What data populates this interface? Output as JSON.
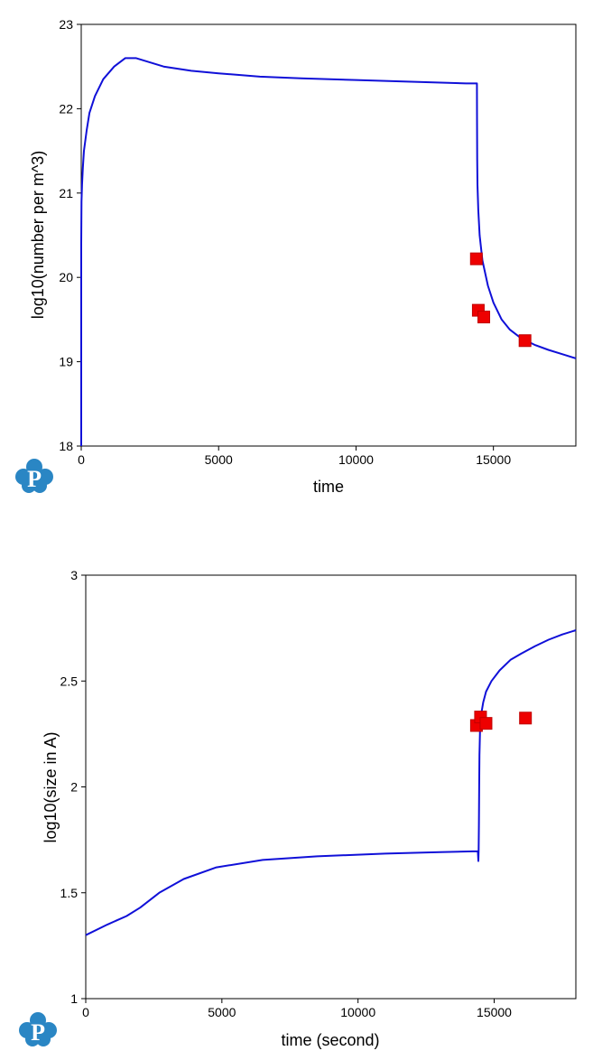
{
  "colors": {
    "line": "#1010d8",
    "marker": "#ee0000",
    "marker_edge": "#c00000",
    "logo": "#2a86c4",
    "axis": "#000000"
  },
  "logo": {
    "letter": "P",
    "icon": "pandat-logo-icon"
  },
  "chart_data": [
    {
      "type": "line",
      "title": "",
      "xlabel": "time",
      "ylabel": "log10(number per m^3)",
      "xlim": [
        0,
        18000
      ],
      "ylim": [
        18,
        23
      ],
      "xticks": [
        0,
        5000,
        10000,
        15000
      ],
      "yticks": [
        18,
        19,
        20,
        21,
        22,
        23
      ],
      "xtick_labels": [
        "0",
        "5000",
        "10000",
        "15000"
      ],
      "ytick_labels": [
        "18",
        "19",
        "20",
        "21",
        "22",
        "23"
      ],
      "grid": false,
      "series": [
        {
          "kind": "line",
          "x": [
            0,
            0,
            10,
            30,
            60,
            100,
            200,
            300,
            500,
            800,
            1200,
            1600,
            2000,
            3000,
            4000,
            5000,
            6500,
            8000,
            10000,
            12000,
            14000,
            14400,
            14402,
            14410,
            14420,
            14450,
            14500,
            14600,
            14800,
            15000,
            15300,
            15600,
            16000,
            16500,
            17000,
            17500,
            18000
          ],
          "y": [
            18.0,
            20.4,
            20.9,
            21.1,
            21.3,
            21.5,
            21.75,
            21.95,
            22.15,
            22.35,
            22.5,
            22.6,
            22.6,
            22.5,
            22.45,
            22.42,
            22.38,
            22.36,
            22.34,
            22.32,
            22.3,
            22.3,
            21.9,
            21.4,
            21.1,
            20.8,
            20.5,
            20.2,
            19.9,
            19.7,
            19.5,
            19.38,
            19.28,
            19.2,
            19.14,
            19.09,
            19.04
          ]
        },
        {
          "kind": "markers",
          "x": [
            14380,
            14450,
            14650,
            16150
          ],
          "y": [
            20.22,
            19.61,
            19.53,
            19.25
          ]
        }
      ]
    },
    {
      "type": "line",
      "title": "",
      "xlabel": "time (second)",
      "ylabel": "log10(size in A)",
      "xlim": [
        0,
        18000
      ],
      "ylim": [
        1,
        3
      ],
      "xticks": [
        0,
        5000,
        10000,
        15000
      ],
      "yticks": [
        1,
        1.5,
        2,
        2.5,
        3
      ],
      "xtick_labels": [
        "0",
        "5000",
        "10000",
        "15000"
      ],
      "ytick_labels": [
        "1",
        "1.5",
        "2",
        "2.5",
        "3"
      ],
      "grid": false,
      "series": [
        {
          "kind": "line",
          "x": [
            0,
            800,
            1500,
            2000,
            2700,
            3600,
            4800,
            6500,
            8500,
            11000,
            13000,
            14400,
            14420,
            14430,
            14440,
            14450,
            14460,
            14480,
            14520,
            14600,
            14700,
            14900,
            15200,
            15600,
            16000,
            16500,
            17000,
            17500,
            18000
          ],
          "y": [
            1.3,
            1.35,
            1.39,
            1.43,
            1.5,
            1.565,
            1.62,
            1.655,
            1.672,
            1.685,
            1.692,
            1.696,
            1.65,
            1.7,
            1.82,
            2.0,
            2.15,
            2.26,
            2.34,
            2.4,
            2.45,
            2.5,
            2.55,
            2.6,
            2.63,
            2.665,
            2.695,
            2.72,
            2.74
          ]
        },
        {
          "kind": "markers",
          "x": [
            14350,
            14500,
            14700,
            16150
          ],
          "y": [
            2.29,
            2.33,
            2.3,
            2.325
          ]
        }
      ]
    }
  ]
}
